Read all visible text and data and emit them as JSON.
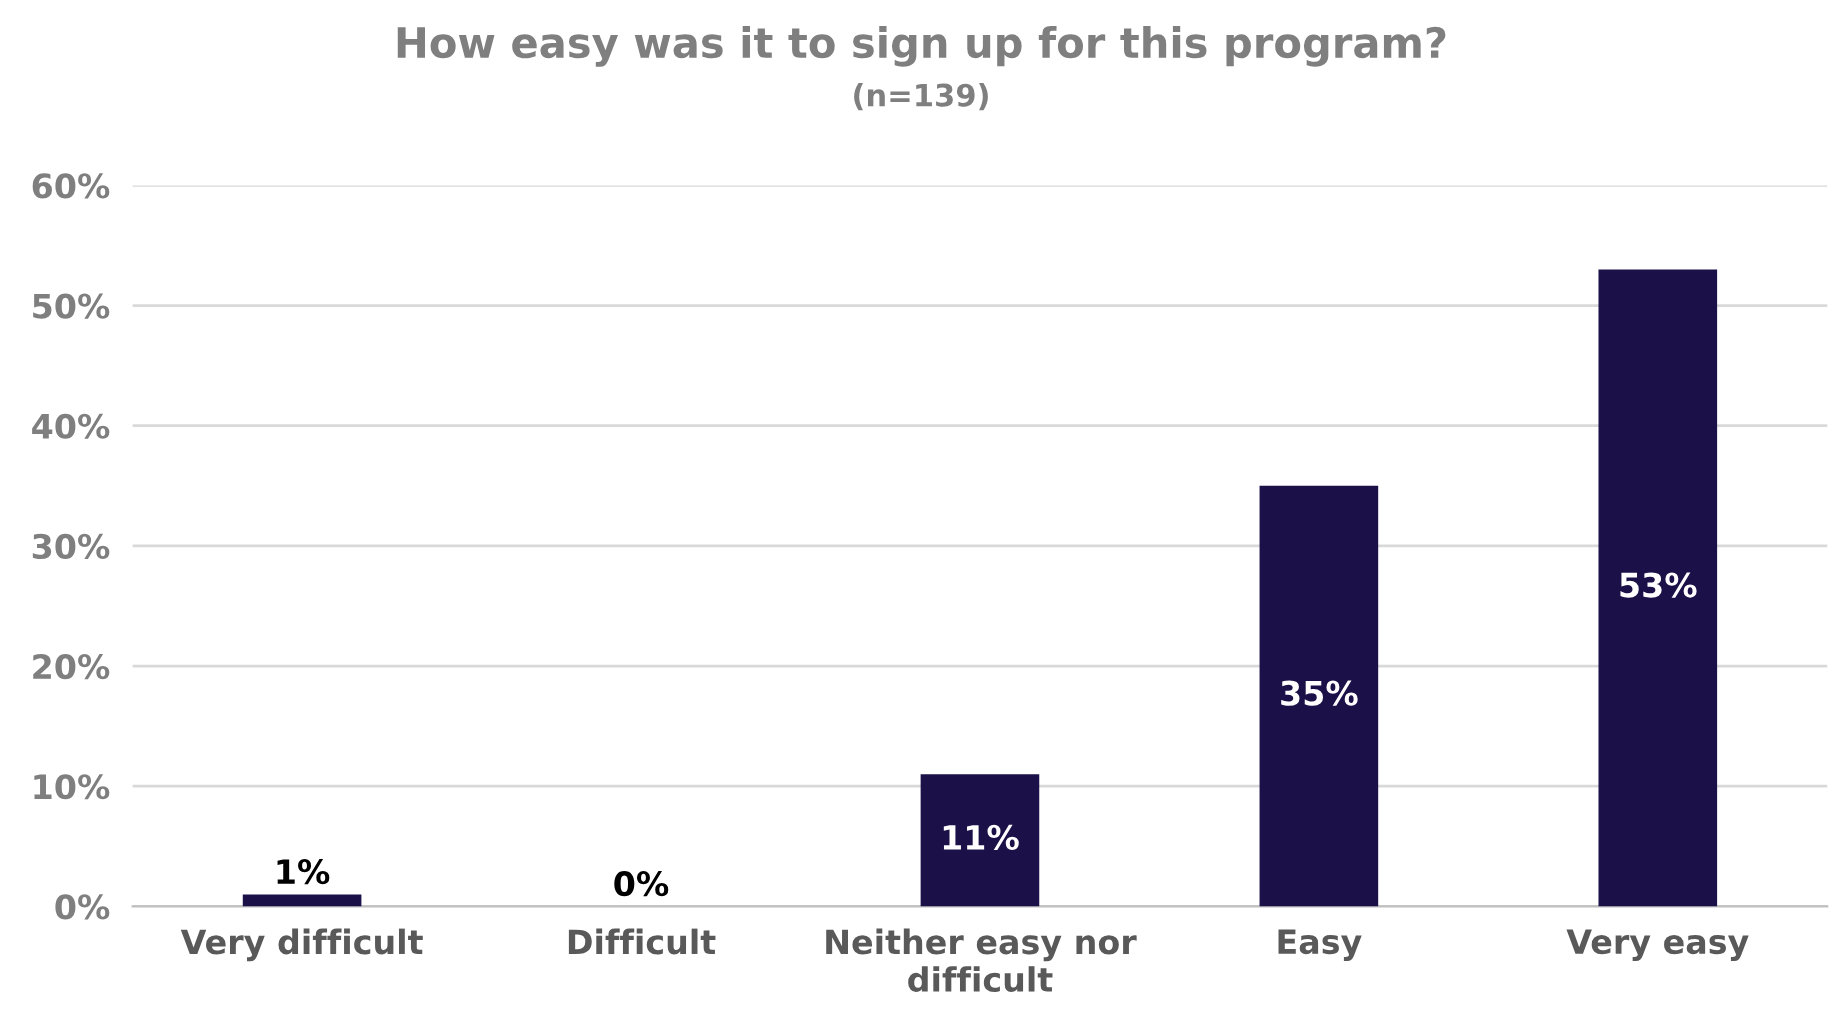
{
  "chart_data": {
    "type": "bar",
    "title": "How easy was it to sign up for this program?",
    "subtitle": "(n=139)",
    "categories": [
      "Very difficult",
      "Difficult",
      "Neither easy nor\ndifficult",
      "Easy",
      "Very easy"
    ],
    "values": [
      1,
      0,
      11,
      35,
      53
    ],
    "color": "#1b1048",
    "value_labels": [
      "1%",
      "0%",
      "11%",
      "35%",
      "53%"
    ],
    "ylim": [
      0,
      60
    ],
    "yticks": [
      {
        "value": 0,
        "label": "0%"
      },
      {
        "value": 10,
        "label": "10%"
      },
      {
        "value": 20,
        "label": "20%"
      },
      {
        "value": 30,
        "label": "30%"
      },
      {
        "value": 40,
        "label": "40%"
      },
      {
        "value": 50,
        "label": "50%"
      },
      {
        "value": 60,
        "label": "60%"
      }
    ],
    "grid": "y",
    "legend": false
  }
}
